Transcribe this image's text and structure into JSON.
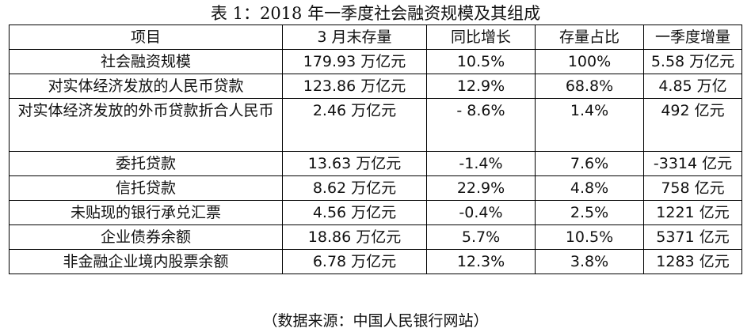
{
  "title": "表 1：2018 年一季度社会融资规模及其组成",
  "headers": [
    "项目",
    "3 月末存量",
    "同比增长",
    "存量占比",
    "一季度增量"
  ],
  "rows": [
    [
      "社会融资规模",
      "179.93 万亿元",
      "10.5%",
      "100%",
      "5.58 万亿元"
    ],
    [
      "对实体经济发放的人民币贷款",
      "123.86 万亿元",
      "12.9%",
      "68.8%",
      "4.85 万亿"
    ],
    [
      "对实体经济发放的外币贷款折合人民币",
      "2.46 万亿元",
      "- 8.6%",
      "1.4%",
      "492 亿元"
    ],
    [
      "委托贷款",
      "13.63 万亿元",
      "-1.4%",
      "7.6%",
      "-3314 亿元"
    ],
    [
      "信托贷款",
      "8.62 万亿元",
      "22.9%",
      "4.8%",
      "758 亿元"
    ],
    [
      "未贴现的银行承兑汇票",
      "4.56 万亿元",
      "-0.4%",
      "2.5%",
      "1221 亿元"
    ],
    [
      "企业债券余额",
      "18.86 万亿元",
      "5.7%",
      "10.5%",
      "5371 亿元"
    ],
    [
      "非金融企业境内股票余额",
      "6.78 万亿元",
      "12.3%",
      "3.8%",
      "1283 亿元"
    ]
  ],
  "source": "（数据来源：中国人民银行网站）"
}
